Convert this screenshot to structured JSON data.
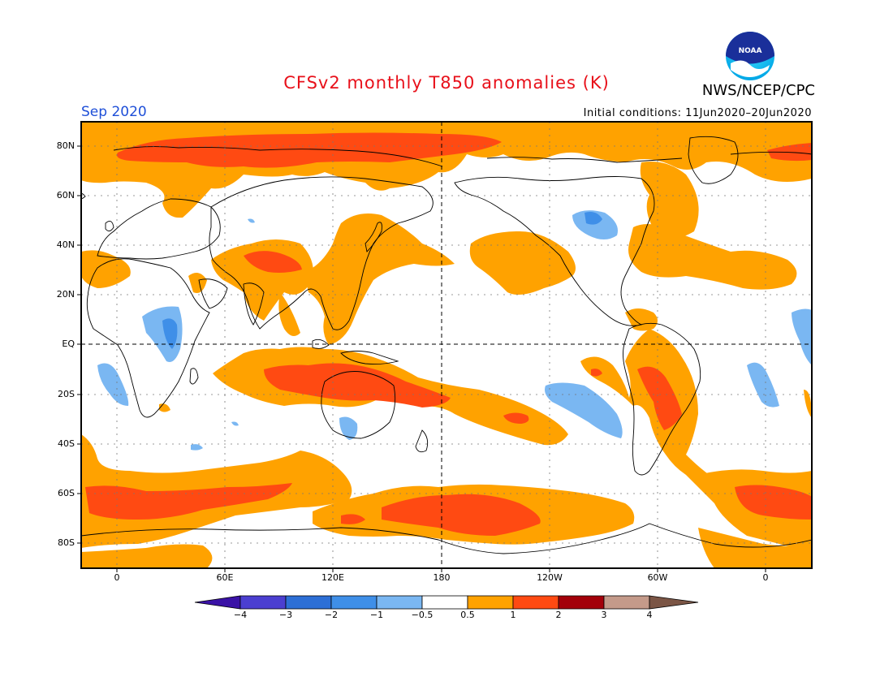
{
  "header": {
    "title": "CFSv2 monthly T850 anomalies (K)",
    "agency": "NWS/NCEP/CPC",
    "logo_text": "NOAA",
    "month": "Sep 2020",
    "initial_conditions": "Initial conditions: 11Jun2020–20Jun2020"
  },
  "map": {
    "projection": "cylindrical",
    "center_longitude": "180",
    "lat_labels": [
      "80N",
      "60N",
      "40N",
      "20N",
      "EQ",
      "20S",
      "40S",
      "60S",
      "80S"
    ],
    "lon_labels": [
      "0",
      "60E",
      "120E",
      "180",
      "120W",
      "60W",
      "0"
    ],
    "grid": "dotted",
    "reference_lines": [
      "EQ",
      "180"
    ]
  },
  "colorbar": {
    "labels": [
      "−4",
      "−3",
      "−2",
      "−1",
      "−0.5",
      "0.5",
      "1",
      "2",
      "3",
      "4"
    ],
    "colors": [
      "#3a12a6",
      "#4b3fd0",
      "#2d6fd6",
      "#3f8fe8",
      "#7ab7f2",
      "#ffffff",
      "#ffa200",
      "#ff4a12",
      "#a3000a",
      "#c49a8a",
      "#7b5545"
    ]
  },
  "colors": {
    "orange_0_5_to_1": "#ffa200",
    "red_1_to_2": "#ff4a12",
    "blue_m1_to_m0_5": "#7ab7f2",
    "blue_m2_to_m1": "#3f8fe8",
    "title": "#e8101a",
    "month": "#1e4fd8"
  }
}
